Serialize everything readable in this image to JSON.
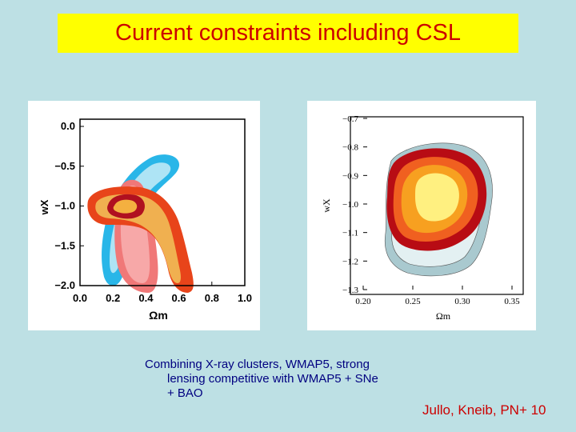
{
  "title": "Current constraints including CSL",
  "caption": {
    "line1": "Combining X-ray clusters, WMAP5, strong",
    "line2": "lensing competitive with WMAP5  +  SNe",
    "line3": "+ BAO"
  },
  "credit": "Jullo, Kneib, PN+ 10",
  "colors": {
    "background": "#bde0e4",
    "title_bg": "#ffff00",
    "title_text": "#cc0000",
    "caption_text": "#000080",
    "credit_text": "#cc0000"
  },
  "chart_data": [
    {
      "type": "contour",
      "xlabel": "Ωm",
      "ylabel": "wX",
      "xlim": [
        0.0,
        1.0
      ],
      "ylim": [
        -2.0,
        0.0
      ],
      "x_ticks": [
        "0.0",
        "0.2",
        "0.4",
        "0.6",
        "0.8",
        "1.0"
      ],
      "y_ticks": [
        "0.0",
        "−0.5",
        "−1.0",
        "−1.5",
        "−2.0"
      ],
      "contours": [
        {
          "color": "#29b6e8",
          "fill_inner": "#aee4f5"
        },
        {
          "color": "#f07878",
          "fill_inner": "#f7a8a8"
        },
        {
          "color": "#e8441a",
          "fill_inner": "#f0b050"
        },
        {
          "color": "#b01020",
          "fill_inner": "#f4b040"
        }
      ]
    },
    {
      "type": "contour",
      "xlabel": "Ωm",
      "ylabel": "wX",
      "xlim": [
        0.2,
        0.35
      ],
      "ylim": [
        -1.3,
        -0.7
      ],
      "x_ticks": [
        "0.20",
        "0.25",
        "0.30",
        "0.35"
      ],
      "y_ticks": [
        "−0.7",
        "−0.8",
        "−0.9",
        "−1.0",
        "−1.1",
        "−1.2",
        "−1.3"
      ],
      "contours": [
        {
          "color": "#a9c9cf"
        },
        {
          "color": "#e3f0f2"
        },
        {
          "color": "#b80c14"
        },
        {
          "color": "#f06020"
        },
        {
          "color": "#f7a020"
        },
        {
          "color": "#fff080"
        }
      ]
    }
  ]
}
